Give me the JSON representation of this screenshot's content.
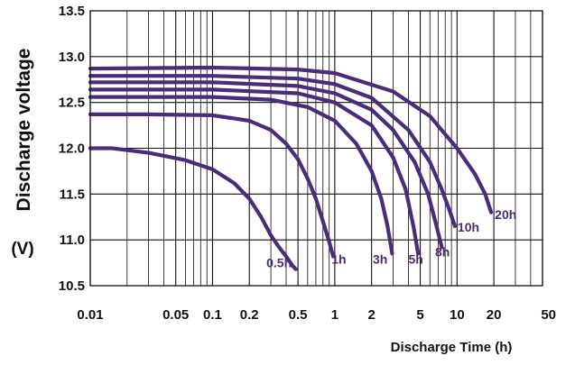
{
  "chart_data": {
    "type": "line",
    "title": "",
    "xlabel": "Discharge Time (h)",
    "ylabel": "Discharge voltage",
    "yunit": "(V)",
    "x_scale": "log",
    "xlim": [
      0.01,
      50
    ],
    "ylim": [
      10.5,
      13.5
    ],
    "grid": true,
    "line_color": "#4b2c7a",
    "x_ticks": [
      {
        "value": 0.01,
        "label": "0.01"
      },
      {
        "value": 0.05,
        "label": "0.05"
      },
      {
        "value": 0.1,
        "label": "0.1"
      },
      {
        "value": 0.2,
        "label": "0.2"
      },
      {
        "value": 0.5,
        "label": "0.5"
      },
      {
        "value": 1,
        "label": "1"
      },
      {
        "value": 2,
        "label": "2"
      },
      {
        "value": 5,
        "label": "5"
      },
      {
        "value": 10,
        "label": "10"
      },
      {
        "value": 20,
        "label": "20"
      },
      {
        "value": 50,
        "label": "50"
      }
    ],
    "x_minor_grid": [
      0.02,
      0.03,
      0.04,
      0.06,
      0.07,
      0.08,
      0.09,
      0.3,
      0.4,
      0.6,
      0.7,
      0.8,
      0.9,
      3,
      4,
      6,
      7,
      8,
      9,
      30,
      40
    ],
    "y_ticks": [
      {
        "value": 10.5,
        "label": "10.5"
      },
      {
        "value": 11.0,
        "label": "11.0"
      },
      {
        "value": 11.5,
        "label": "11.5"
      },
      {
        "value": 12.0,
        "label": "12.0"
      },
      {
        "value": 12.5,
        "label": "12.5"
      },
      {
        "value": 13.0,
        "label": "13.0"
      },
      {
        "value": 13.5,
        "label": "13.5"
      }
    ],
    "series": [
      {
        "name": "0.5h",
        "points": [
          [
            0.01,
            12.0
          ],
          [
            0.015,
            12.0
          ],
          [
            0.03,
            11.95
          ],
          [
            0.06,
            11.87
          ],
          [
            0.1,
            11.77
          ],
          [
            0.15,
            11.62
          ],
          [
            0.2,
            11.45
          ],
          [
            0.25,
            11.25
          ],
          [
            0.3,
            11.05
          ],
          [
            0.35,
            10.92
          ],
          [
            0.4,
            10.82
          ],
          [
            0.45,
            10.72
          ],
          [
            0.48,
            10.68
          ]
        ]
      },
      {
        "name": "1h",
        "points": [
          [
            0.01,
            12.37
          ],
          [
            0.03,
            12.37
          ],
          [
            0.1,
            12.36
          ],
          [
            0.2,
            12.3
          ],
          [
            0.3,
            12.2
          ],
          [
            0.4,
            12.05
          ],
          [
            0.5,
            11.88
          ],
          [
            0.6,
            11.67
          ],
          [
            0.7,
            11.45
          ],
          [
            0.8,
            11.2
          ],
          [
            0.9,
            10.98
          ],
          [
            0.97,
            10.82
          ]
        ]
      },
      {
        "name": "3h",
        "points": [
          [
            0.01,
            12.56
          ],
          [
            0.1,
            12.56
          ],
          [
            0.3,
            12.53
          ],
          [
            0.6,
            12.45
          ],
          [
            1,
            12.3
          ],
          [
            1.5,
            12.05
          ],
          [
            2,
            11.75
          ],
          [
            2.4,
            11.45
          ],
          [
            2.7,
            11.15
          ],
          [
            2.95,
            10.85
          ]
        ]
      },
      {
        "name": "5h",
        "points": [
          [
            0.01,
            12.64
          ],
          [
            0.1,
            12.64
          ],
          [
            0.5,
            12.6
          ],
          [
            1,
            12.5
          ],
          [
            2,
            12.25
          ],
          [
            3,
            11.9
          ],
          [
            3.8,
            11.55
          ],
          [
            4.4,
            11.15
          ],
          [
            4.8,
            10.85
          ]
        ]
      },
      {
        "name": "8h",
        "points": [
          [
            0.01,
            12.72
          ],
          [
            0.1,
            12.72
          ],
          [
            0.5,
            12.68
          ],
          [
            1,
            12.6
          ],
          [
            2,
            12.42
          ],
          [
            3,
            12.2
          ],
          [
            4.5,
            11.85
          ],
          [
            5.8,
            11.5
          ],
          [
            6.8,
            11.15
          ],
          [
            7.5,
            10.92
          ]
        ]
      },
      {
        "name": "10h",
        "points": [
          [
            0.01,
            12.79
          ],
          [
            0.1,
            12.79
          ],
          [
            0.5,
            12.76
          ],
          [
            1,
            12.7
          ],
          [
            2,
            12.55
          ],
          [
            4,
            12.2
          ],
          [
            6,
            11.85
          ],
          [
            7.5,
            11.55
          ],
          [
            8.8,
            11.3
          ],
          [
            9.6,
            11.15
          ]
        ]
      },
      {
        "name": "20h",
        "points": [
          [
            0.01,
            12.87
          ],
          [
            0.1,
            12.88
          ],
          [
            0.5,
            12.86
          ],
          [
            1,
            12.82
          ],
          [
            3,
            12.62
          ],
          [
            6,
            12.35
          ],
          [
            10,
            12.0
          ],
          [
            14,
            11.72
          ],
          [
            17,
            11.5
          ],
          [
            19,
            11.3
          ]
        ]
      }
    ],
    "curve_labels": [
      {
        "text": "0.5h",
        "x": 0.35,
        "y": 10.7
      },
      {
        "text": "1h",
        "x": 1.08,
        "y": 10.74
      },
      {
        "text": "3h",
        "x": 2.35,
        "y": 10.74
      },
      {
        "text": "5h",
        "x": 4.6,
        "y": 10.74
      },
      {
        "text": "8h",
        "x": 7.6,
        "y": 10.82
      },
      {
        "text": "10h",
        "x": 12.4,
        "y": 11.09
      },
      {
        "text": "20h",
        "x": 25,
        "y": 11.23
      }
    ]
  }
}
